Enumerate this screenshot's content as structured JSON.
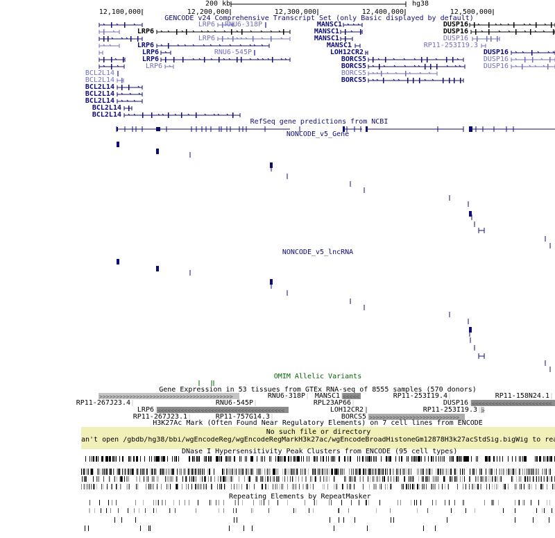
{
  "ruler": {
    "scale_label": "200 kb",
    "assembly": "hg38",
    "ticks": [
      "12,100,000",
      "12,200,000",
      "12,300,000",
      "12,400,000",
      "12,500,000"
    ]
  },
  "tracks": {
    "gencode": {
      "title": "GENCODE v24 Comprehensive Transcript Set (only Basic displayed by default)",
      "labels": [
        "LRP6",
        "RNU6-318P",
        "MANSC1",
        "DUSP16",
        "LRP6",
        "MANSC1",
        "DUSP16",
        "LRP6",
        "MANSC1",
        "DUSP16",
        "LRP6",
        "MANSC1",
        "RP11-253I19.3",
        "LRP6",
        "RNU6-545P",
        "LOH12CR2",
        "DUSP16",
        "LRP6",
        "BORCS5",
        "DUSP16",
        "LRP6",
        "BORCS5",
        "DUSP16",
        "BCL2L14",
        "BORCS5",
        "BCL2L14",
        "BORCS5",
        "BCL2L14",
        "BCL2L14",
        "BCL2L14",
        "BCL2L14",
        "BCL2L14"
      ]
    },
    "refseq": {
      "title": "RefSeq gene predictions from NCBI"
    },
    "noncode_gene": {
      "title": "NONCODE_v5_Gene"
    },
    "noncode_lncrna": {
      "title": "NONCODE_v5_lncRNA"
    },
    "omim": {
      "title": "OMIM Allelic Variants"
    },
    "gtex": {
      "title": "Gene Expression in 53 tissues from GTEx RNA-seq of 8555 samples (570 donors)",
      "labels": [
        "RNU6-318P",
        "MANSC1",
        "RP11-253I19.4",
        "RP11-158N24.1",
        "RP11-267J23.4",
        "RNU6-545P",
        "RPL23AP66",
        "DUSP16",
        "LRP6",
        "LOH12CR2",
        "RP11-253I19.3",
        "RP11-267J23.1",
        "RP11-757G14.3",
        "BORCS5"
      ]
    },
    "h3k27ac": {
      "title": "H3K27Ac Mark (Often Found Near Regulatory Elements) on 7 cell lines from ENCODE",
      "error_title": "No such file or directory",
      "error_detail": "an't open /gbdb/hg38/bbi/wgEncodeReg/wgEncodeRegMarkH3k27ac/wgEncodeBroadHistoneGm12878H3k27acStdSig.bigWig to rea"
    },
    "dnase": {
      "title": "DNase I Hypersensitivity Peak Clusters from ENCODE (95 cell types)"
    },
    "repeatmasker": {
      "title": "Repeating Elements by RepeatMasker"
    }
  },
  "colors": {
    "dark": "#0c0c78",
    "light": "#6f6fc0",
    "black": "#000000",
    "omim": "#006400",
    "error_bg": "#f0f0b8"
  }
}
